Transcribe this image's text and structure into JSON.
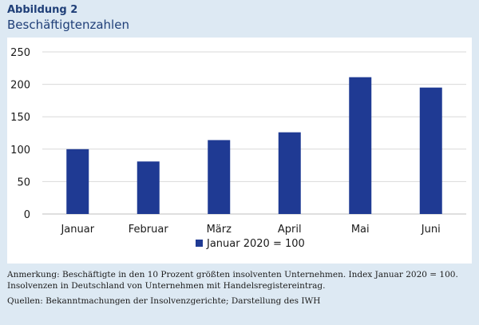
{
  "figure": {
    "label": "Abbildung 2",
    "title": "Beschäftigtenzahlen"
  },
  "notes": {
    "remark": "Anmerkung: Beschäftigte in den 10 Prozent größten insolventen Unternehmen. Index Januar 2020 = 100. Insolvenzen in Deutschland von Unternehmen mit Handelsregistereintrag.",
    "sources": "Quellen: Bekanntmachungen der Insolvenzgerichte; Darstellung des IWH"
  },
  "colors": {
    "bar": "#1f3a93",
    "grid": "#d9d9d9",
    "axis": "#bfbfbf",
    "text": "#1a1a1a",
    "title": "#1f3f78"
  },
  "chart_data": {
    "type": "bar",
    "categories": [
      "Januar",
      "Februar",
      "März",
      "April",
      "Mai",
      "Juni"
    ],
    "series": [
      {
        "name": "Januar 2020 = 100",
        "values": [
          100,
          81,
          114,
          126,
          211,
          195
        ]
      }
    ],
    "yticks": [
      "0",
      "50",
      "100",
      "150",
      "200",
      "250"
    ],
    "ylim": [
      0,
      250
    ],
    "grid": true,
    "legend_position": "bottom"
  }
}
